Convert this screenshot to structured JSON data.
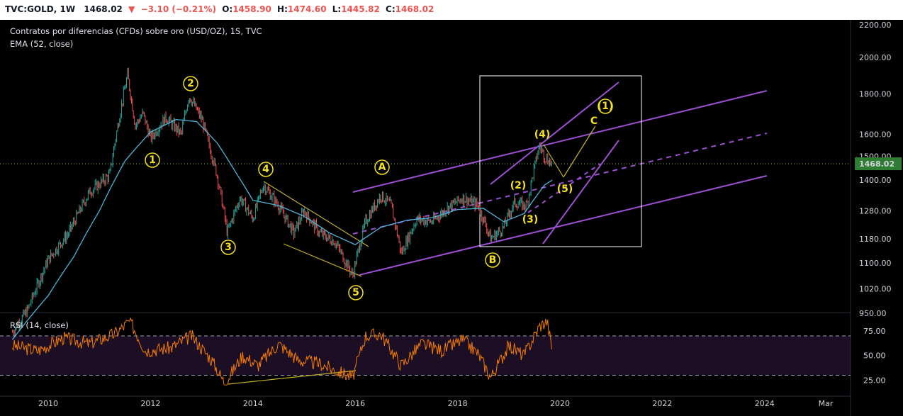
{
  "header": {
    "symbol": "TVC:GOLD, 1W",
    "last": "1468.02",
    "change": "−3.10 (−0.21%)",
    "o_label": "O:",
    "o_value": "1458.90",
    "h_label": "H:",
    "h_value": "1474.60",
    "l_label": "L:",
    "l_value": "1445.82",
    "c_label": "C:",
    "c_value": "1468.02"
  },
  "colors": {
    "background": "#000000",
    "candle_up": "#26a69a",
    "candle_down": "#ef5350",
    "ema": "#4fb3d9",
    "channel": "#9c4fd1",
    "rsi_line": "#f57c00",
    "rsi_band": "#1c0e24",
    "wave_label": "#f5e11e",
    "price_tag": "#2e7d32"
  },
  "chart_data": [
    {
      "type": "line",
      "title": "Contratos por diferencias (CFDs) sobre oro (USD/OZ), 1S, TVC",
      "indicator_label": "EMA (52, close)",
      "y_scale": "log",
      "ylim": [
        950,
        2200
      ],
      "y_ticks": [
        "2200.00",
        "2000.00",
        "1800.00",
        "1600.00",
        "1500.00",
        "1400.00",
        "1280.00",
        "1180.00",
        "1100.00",
        "1020.00",
        "950.00"
      ],
      "x_ticks": [
        "2010",
        "2012",
        "2014",
        "2016",
        "2018",
        "2020",
        "2022",
        "2024",
        "Mar"
      ],
      "last_price_tag": "1468.02",
      "series": [
        {
          "name": "GOLD",
          "x": [
            2009.3,
            2009.6,
            2010.0,
            2010.4,
            2010.8,
            2011.2,
            2011.55,
            2011.7,
            2011.85,
            2012.0,
            2012.3,
            2012.6,
            2012.75,
            2013.0,
            2013.3,
            2013.5,
            2013.75,
            2014.0,
            2014.2,
            2014.5,
            2014.8,
            2015.0,
            2015.3,
            2015.6,
            2015.95,
            2016.2,
            2016.5,
            2016.7,
            2016.9,
            2017.2,
            2017.5,
            2017.8,
            2018.1,
            2018.4,
            2018.65,
            2018.9,
            2019.1,
            2019.35,
            2019.6,
            2019.7,
            2019.85
          ],
          "y": [
            900,
            960,
            1110,
            1200,
            1350,
            1420,
            1900,
            1640,
            1700,
            1580,
            1680,
            1600,
            1790,
            1670,
            1420,
            1200,
            1330,
            1250,
            1380,
            1300,
            1200,
            1280,
            1200,
            1170,
            1060,
            1240,
            1340,
            1300,
            1130,
            1250,
            1240,
            1290,
            1330,
            1300,
            1180,
            1220,
            1310,
            1300,
            1550,
            1500,
            1468
          ]
        },
        {
          "name": "EMA (52, close)",
          "x": [
            2009.3,
            2010.0,
            2010.5,
            2011.0,
            2011.5,
            2012.0,
            2012.5,
            2012.9,
            2013.3,
            2013.7,
            2014.0,
            2014.5,
            2015.0,
            2015.5,
            2016.0,
            2016.5,
            2017.0,
            2017.5,
            2018.0,
            2018.5,
            2018.9,
            2019.3,
            2019.7,
            2019.85
          ],
          "y": [
            880,
            1000,
            1120,
            1280,
            1480,
            1610,
            1670,
            1660,
            1560,
            1420,
            1320,
            1300,
            1260,
            1200,
            1160,
            1220,
            1245,
            1255,
            1285,
            1290,
            1240,
            1270,
            1380,
            1400
          ]
        }
      ],
      "annotations": [
        "1",
        "2",
        "3",
        "4",
        "5",
        "A",
        "B",
        "(1)",
        "(2)",
        "(3)",
        "(4)",
        "(5)",
        "C"
      ]
    },
    {
      "type": "line",
      "indicator_label": "RSI (14, close)",
      "ylim": [
        20,
        90
      ],
      "y_ticks": [
        "75.00",
        "50.00",
        "25.00"
      ],
      "series": [
        {
          "name": "RSI (14, close)",
          "x": [
            2009.3,
            2009.8,
            2010.3,
            2010.8,
            2011.3,
            2011.6,
            2011.9,
            2012.4,
            2012.8,
            2013.2,
            2013.45,
            2013.8,
            2014.1,
            2014.5,
            2014.9,
            2015.3,
            2015.6,
            2015.95,
            2016.2,
            2016.5,
            2016.9,
            2017.3,
            2017.7,
            2018.1,
            2018.4,
            2018.65,
            2019.0,
            2019.3,
            2019.6,
            2019.75,
            2019.85
          ],
          "y": [
            60,
            55,
            68,
            62,
            72,
            85,
            55,
            58,
            70,
            45,
            22,
            50,
            40,
            62,
            45,
            42,
            35,
            28,
            70,
            72,
            40,
            62,
            55,
            66,
            52,
            28,
            60,
            50,
            80,
            85,
            55
          ]
        }
      ]
    }
  ]
}
